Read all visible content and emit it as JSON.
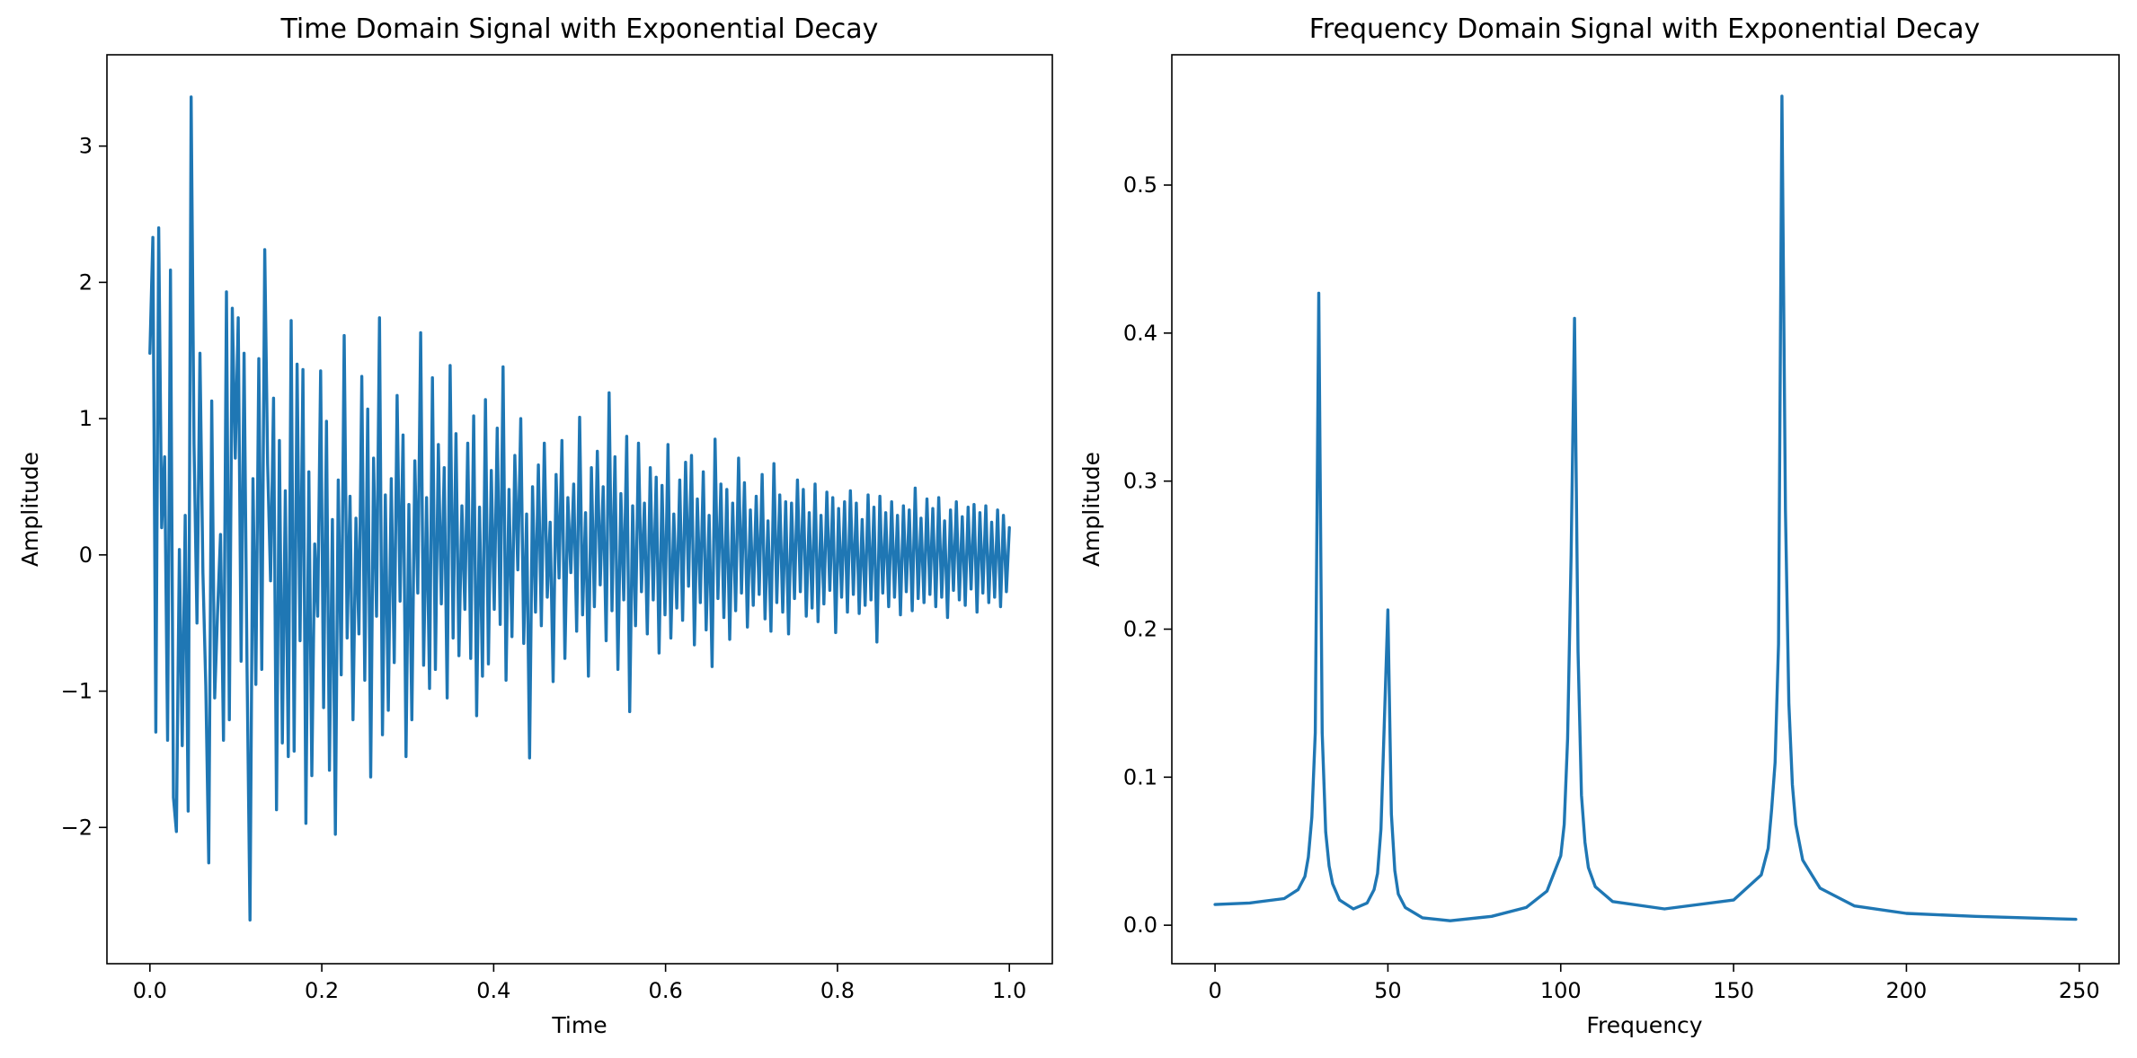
{
  "chart_data": [
    {
      "type": "line",
      "title": "Time Domain Signal with Exponential Decay",
      "xlabel": "Time",
      "ylabel": "Amplitude",
      "xlim": [
        -0.05,
        1.05
      ],
      "ylim": [
        -3.0,
        3.67
      ],
      "xticks": [
        0.0,
        0.2,
        0.4,
        0.6,
        0.8,
        1.0
      ],
      "xtick_labels": [
        "0.0",
        "0.2",
        "0.4",
        "0.6",
        "0.8",
        "1.0"
      ],
      "yticks": [
        -2,
        -1,
        0,
        1,
        2,
        3
      ],
      "ytick_labels": [
        "−2",
        "−1",
        "0",
        "1",
        "2",
        "3"
      ],
      "grid": false,
      "series": [
        {
          "color": "#1f77b4",
          "x_range": [
            0.0,
            1.0
          ],
          "y": [
            1.48,
            2.33,
            -1.3,
            2.4,
            0.2,
            0.72,
            -1.36,
            2.09,
            -1.78,
            -2.03,
            0.04,
            -1.4,
            0.29,
            -1.88,
            3.36,
            0.81,
            -0.5,
            1.48,
            -0.13,
            -0.96,
            -2.26,
            1.13,
            -1.05,
            -0.42,
            0.15,
            -1.36,
            1.93,
            -1.21,
            1.81,
            0.71,
            1.74,
            -0.78,
            1.48,
            -0.83,
            -2.68,
            0.56,
            -0.95,
            1.44,
            -0.84,
            2.24,
            0.67,
            -0.19,
            1.15,
            -1.87,
            0.84,
            -1.38,
            0.47,
            -1.48,
            1.72,
            -1.44,
            1.4,
            -0.63,
            1.36,
            -1.97,
            0.61,
            -1.62,
            0.08,
            -0.45,
            1.35,
            -1.12,
            0.98,
            -1.58,
            0.26,
            -2.05,
            0.55,
            -0.88,
            1.61,
            -0.61,
            0.43,
            -1.21,
            0.27,
            -0.58,
            1.31,
            -0.92,
            1.07,
            -1.63,
            0.71,
            -0.45,
            1.74,
            -1.32,
            0.44,
            -1.14,
            0.56,
            -0.79,
            1.17,
            -0.34,
            0.88,
            -1.48,
            0.37,
            -1.21,
            0.69,
            -0.28,
            1.63,
            -0.81,
            0.42,
            -0.98,
            1.3,
            -0.84,
            0.81,
            -0.36,
            0.64,
            -1.05,
            1.39,
            -0.61,
            0.89,
            -0.74,
            0.36,
            -0.4,
            0.82,
            -0.76,
            1.02,
            -1.18,
            0.35,
            -0.89,
            1.14,
            -0.8,
            0.62,
            -0.4,
            0.93,
            -0.51,
            1.38,
            -0.92,
            0.48,
            -0.6,
            0.73,
            -0.11,
            1.0,
            -0.65,
            0.3,
            -1.49,
            0.5,
            -0.42,
            0.66,
            -0.52,
            0.82,
            -0.31,
            0.24,
            -0.93,
            0.59,
            -0.17,
            0.84,
            -0.76,
            0.42,
            -0.13,
            0.52,
            -0.56,
            1.01,
            -0.44,
            0.31,
            -0.89,
            0.64,
            -0.38,
            0.76,
            -0.22,
            0.5,
            -0.63,
            1.19,
            -0.41,
            0.72,
            -0.84,
            0.45,
            -0.33,
            0.87,
            -1.15,
            0.36,
            -0.52,
            0.82,
            -0.27,
            0.38,
            -0.58,
            0.64,
            -0.33,
            0.57,
            -0.72,
            0.51,
            -0.44,
            0.81,
            -0.61,
            0.3,
            -0.39,
            0.55,
            -0.48,
            0.68,
            -0.23,
            0.73,
            -0.66,
            0.41,
            -0.35,
            0.61,
            -0.55,
            0.29,
            -0.82,
            0.85,
            -0.32,
            0.52,
            -0.46,
            0.48,
            -0.62,
            0.38,
            -0.41,
            0.71,
            -0.28,
            0.53,
            -0.53,
            0.33,
            -0.37,
            0.43,
            -0.29,
            0.59,
            -0.47,
            0.25,
            -0.56,
            0.67,
            -0.35,
            0.44,
            -0.42,
            0.39,
            -0.58,
            0.38,
            -0.32,
            0.55,
            -0.27,
            0.48,
            -0.45,
            0.31,
            -0.39,
            0.52,
            -0.49,
            0.29,
            -0.36,
            0.46,
            -0.26,
            0.42,
            -0.57,
            0.34,
            -0.31,
            0.39,
            -0.42,
            0.47,
            -0.29,
            0.38,
            -0.43,
            0.26,
            -0.37,
            0.44,
            -0.33,
            0.35,
            -0.64,
            0.43,
            -0.28,
            0.31,
            -0.38,
            0.39,
            -0.31,
            0.29,
            -0.44,
            0.36,
            -0.27,
            0.33,
            -0.41,
            0.49,
            -0.32,
            0.27,
            -0.35,
            0.41,
            -0.29,
            0.34,
            -0.38,
            0.42,
            -0.31,
            0.25,
            -0.46,
            0.33,
            -0.26,
            0.39,
            -0.33,
            0.28,
            -0.37,
            0.35,
            -0.25,
            0.37,
            -0.42,
            0.31,
            -0.28,
            0.36,
            -0.35,
            0.24,
            -0.31,
            0.33,
            -0.38,
            0.29,
            -0.27,
            0.2
          ]
        }
      ]
    },
    {
      "type": "line",
      "title": "Frequency Domain Signal with Exponential Decay",
      "xlabel": "Frequency",
      "ylabel": "Amplitude",
      "xlim": [
        -12.5,
        261.5
      ],
      "ylim": [
        -0.026,
        0.588
      ],
      "xticks": [
        0,
        50,
        100,
        150,
        200,
        250
      ],
      "xtick_labels": [
        "0",
        "50",
        "100",
        "150",
        "200",
        "250"
      ],
      "yticks": [
        0.0,
        0.1,
        0.2,
        0.3,
        0.4,
        0.5
      ],
      "ytick_labels": [
        "0.0",
        "0.1",
        "0.2",
        "0.3",
        "0.4",
        "0.5"
      ],
      "grid": false,
      "series": [
        {
          "color": "#1f77b4",
          "x": [
            0,
            10,
            20,
            24,
            26,
            27,
            28,
            29,
            30,
            31,
            32,
            33,
            34,
            36,
            40,
            44,
            46,
            47,
            48,
            49,
            50,
            51,
            52,
            53,
            55,
            60,
            68,
            80,
            90,
            96,
            100,
            101,
            102,
            103,
            104,
            105,
            106,
            107,
            108,
            110,
            115,
            130,
            150,
            158,
            160,
            161,
            162,
            163,
            164,
            165,
            166,
            167,
            168,
            170,
            175,
            185,
            200,
            220,
            249
          ],
          "y": [
            0.014,
            0.015,
            0.018,
            0.024,
            0.033,
            0.046,
            0.073,
            0.13,
            0.427,
            0.13,
            0.063,
            0.04,
            0.028,
            0.017,
            0.011,
            0.015,
            0.024,
            0.035,
            0.065,
            0.14,
            0.213,
            0.075,
            0.037,
            0.021,
            0.012,
            0.005,
            0.003,
            0.006,
            0.012,
            0.023,
            0.047,
            0.068,
            0.126,
            0.25,
            0.41,
            0.185,
            0.088,
            0.056,
            0.039,
            0.026,
            0.016,
            0.011,
            0.017,
            0.034,
            0.052,
            0.078,
            0.11,
            0.19,
            0.56,
            0.28,
            0.15,
            0.095,
            0.068,
            0.044,
            0.025,
            0.013,
            0.008,
            0.006,
            0.004
          ]
        }
      ]
    }
  ]
}
